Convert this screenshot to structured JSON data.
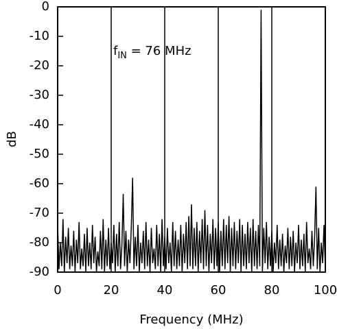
{
  "chart_data": {
    "type": "line",
    "annotation": {
      "base": "f",
      "sub": "IN",
      "rest": " = 76 MHz"
    },
    "x_label": "Frequency (MHz)",
    "y_label": "dB",
    "xlim": [
      0,
      100
    ],
    "xticks": [
      0,
      20,
      40,
      60,
      80,
      100
    ],
    "ylim": [
      -90,
      0
    ],
    "yticks": [
      0,
      -10,
      -20,
      -30,
      -40,
      -50,
      -60,
      -70,
      -80,
      -90
    ],
    "grid": "x",
    "series": [
      {
        "color": "#000000",
        "x": [
          0,
          0.5,
          1,
          1.5,
          2,
          2.5,
          3,
          3.5,
          4,
          4.5,
          5,
          5.5,
          6,
          6.5,
          7,
          7.5,
          8,
          8.5,
          9,
          9.5,
          10,
          10.5,
          11,
          11.5,
          12,
          12.5,
          13,
          13.5,
          14,
          14.5,
          15,
          15.5,
          16,
          16.5,
          17,
          17.5,
          18,
          18.5,
          19,
          19.5,
          20,
          20.5,
          21,
          21.5,
          22,
          22.5,
          23,
          23.5,
          24,
          24.5,
          25,
          25.5,
          26,
          26.5,
          27,
          27.5,
          28,
          28.5,
          29,
          29.5,
          30,
          30.5,
          31,
          31.5,
          32,
          32.5,
          33,
          33.5,
          34,
          34.5,
          35,
          35.5,
          36,
          36.5,
          37,
          37.5,
          38,
          38.5,
          39,
          39.5,
          40,
          40.5,
          41,
          41.5,
          42,
          42.5,
          43,
          43.5,
          44,
          44.5,
          45,
          45.5,
          46,
          46.5,
          47,
          47.5,
          48,
          48.5,
          49,
          49.5,
          50,
          50.5,
          51,
          51.5,
          52,
          52.5,
          53,
          53.5,
          54,
          54.5,
          55,
          55.5,
          56,
          56.5,
          57,
          57.5,
          58,
          58.5,
          59,
          59.5,
          60,
          60.5,
          61,
          61.5,
          62,
          62.5,
          63,
          63.5,
          64,
          64.5,
          65,
          65.5,
          66,
          66.5,
          67,
          67.5,
          68,
          68.5,
          69,
          69.5,
          70,
          70.5,
          71,
          71.5,
          72,
          72.5,
          73,
          73.5,
          74,
          74.5,
          75,
          75.5,
          76,
          76.5,
          77,
          77.5,
          78,
          78.5,
          79,
          79.5,
          80,
          80.5,
          81,
          81.5,
          82,
          82.5,
          83,
          83.5,
          84,
          84.5,
          85,
          85.5,
          86,
          86.5,
          87,
          87.5,
          88,
          88.5,
          89,
          89.5,
          90,
          90.5,
          91,
          91.5,
          92,
          92.5,
          93,
          93.5,
          94,
          94.5,
          95,
          95.5,
          96,
          96.5,
          97,
          97.5,
          98,
          98.5,
          99,
          99.5,
          100
        ],
        "values": [
          -74,
          -89,
          -80,
          -88,
          -72,
          -90,
          -78,
          -87,
          -75,
          -89,
          -81,
          -88,
          -76,
          -90,
          -79,
          -87,
          -73,
          -89,
          -82,
          -88,
          -77,
          -90,
          -75,
          -88,
          -80,
          -89,
          -74,
          -87,
          -78,
          -90,
          -83,
          -88,
          -76,
          -89,
          -72,
          -90,
          -79,
          -88,
          -75,
          -89,
          -80,
          -87,
          -74,
          -90,
          -77,
          -88,
          -73,
          -89,
          -81,
          -63.5,
          -88,
          -76,
          -90,
          -79,
          -87,
          -75,
          -58,
          -89,
          -78,
          -88,
          -74,
          -90,
          -80,
          -87,
          -76,
          -89,
          -73,
          -88,
          -79,
          -90,
          -75,
          -87,
          -82,
          -89,
          -74,
          -88,
          -77,
          -90,
          -72,
          -88,
          -78,
          -89,
          -75,
          -87,
          -80,
          -90,
          -73,
          -88,
          -76,
          -89,
          -79,
          -88,
          -74,
          -90,
          -77,
          -87,
          -73,
          -89,
          -71,
          -88,
          -67,
          -89,
          -75,
          -88,
          -73,
          -90,
          -76,
          -87,
          -72,
          -89,
          -69,
          -88,
          -74,
          -90,
          -77,
          -87,
          -72,
          -89,
          -75,
          -88,
          -73,
          -90,
          -76,
          -88,
          -72,
          -89,
          -74,
          -87,
          -71,
          -90,
          -75,
          -88,
          -73,
          -89,
          -76,
          -87,
          -72,
          -90,
          -74,
          -88,
          -77,
          -89,
          -73,
          -87,
          -75,
          -90,
          -72,
          -88,
          -76,
          -89,
          -74,
          -88,
          -1,
          -90,
          -75,
          -87,
          -73,
          -89,
          -78,
          -88,
          -76,
          -90,
          -80,
          -87,
          -74,
          -89,
          -79,
          -88,
          -77,
          -90,
          -81,
          -87,
          -75,
          -89,
          -78,
          -88,
          -76,
          -90,
          -80,
          -87,
          -74,
          -89,
          -79,
          -88,
          -77,
          -90,
          -73,
          -87,
          -82,
          -89,
          -76,
          -88,
          -78,
          -61,
          -89,
          -75,
          -90,
          -80,
          -87,
          -74,
          -89
        ]
      }
    ]
  }
}
